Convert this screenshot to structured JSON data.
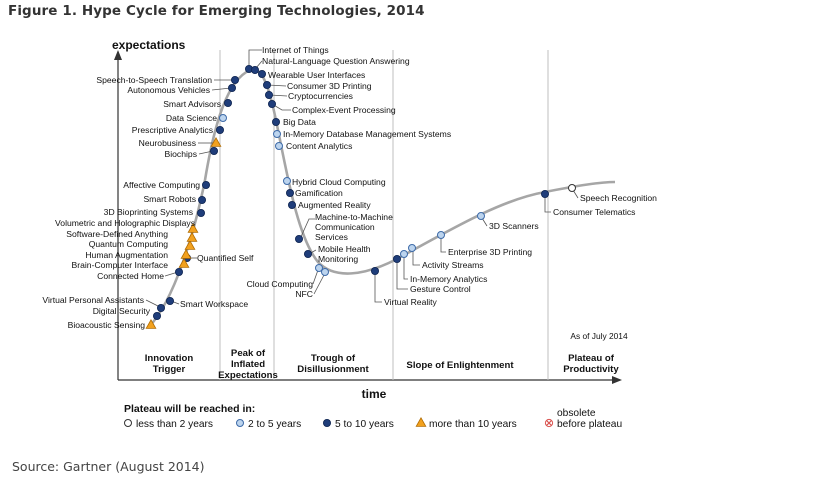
{
  "figure_title": "Figure 1. Hype Cycle for Emerging Technologies, 2014",
  "source": "Source: Gartner (August 2014)",
  "chart_data": {
    "type": "scatter",
    "title": "Hype Cycle for Emerging Technologies, 2014",
    "ylabel": "expectations",
    "xlabel": "time",
    "as_of": "As of July 2014",
    "phases": [
      "Innovation Trigger",
      "Peak of Inflated Expectations",
      "Trough of Disillusionment",
      "Slope of Enlightenment",
      "Plateau of Productivity"
    ],
    "legend_title": "Plateau will be reached in:",
    "legend": [
      {
        "key": "lt2",
        "label": "less than 2 years",
        "symbol": "open-circle"
      },
      {
        "key": "2to5",
        "label": "2 to 5 years",
        "symbol": "light-blue-circle"
      },
      {
        "key": "5to10",
        "label": "5 to 10 years",
        "symbol": "dark-blue-circle"
      },
      {
        "key": "gt10",
        "label": "more than 10 years",
        "symbol": "orange-triangle"
      },
      {
        "key": "obs",
        "label": "obsolete before plateau",
        "symbol": "crossed-circle"
      }
    ],
    "colors": {
      "curve": "#a6a6a6",
      "dark_blue": "#1f3d7a",
      "light_blue": "#bcd4ee",
      "orange": "#f2a11f",
      "obsolete": "#d9534f",
      "divider": "#bfbfbf"
    },
    "technologies": [
      {
        "name": "Bioacoustic Sensing",
        "phase": "Innovation Trigger",
        "plateau": "gt10"
      },
      {
        "name": "Digital Security",
        "phase": "Innovation Trigger",
        "plateau": "5to10"
      },
      {
        "name": "Virtual Personal Assistants",
        "phase": "Innovation Trigger",
        "plateau": "5to10"
      },
      {
        "name": "Smart Workspace",
        "phase": "Innovation Trigger",
        "plateau": "5to10"
      },
      {
        "name": "Connected Home",
        "phase": "Innovation Trigger",
        "plateau": "5to10"
      },
      {
        "name": "Quantified Self",
        "phase": "Innovation Trigger",
        "plateau": "5to10"
      },
      {
        "name": "Brain-Computer Interface",
        "phase": "Innovation Trigger",
        "plateau": "gt10"
      },
      {
        "name": "Human Augmentation",
        "phase": "Innovation Trigger",
        "plateau": "gt10"
      },
      {
        "name": "Quantum Computing",
        "phase": "Innovation Trigger",
        "plateau": "gt10"
      },
      {
        "name": "Software-Defined Anything",
        "phase": "Innovation Trigger",
        "plateau": "gt10"
      },
      {
        "name": "Volumetric and Holographic Displays",
        "phase": "Innovation Trigger",
        "plateau": "gt10"
      },
      {
        "name": "3D Bioprinting Systems",
        "phase": "Innovation Trigger",
        "plateau": "5to10"
      },
      {
        "name": "Smart Robots",
        "phase": "Innovation Trigger",
        "plateau": "5to10"
      },
      {
        "name": "Affective Computing",
        "phase": "Innovation Trigger",
        "plateau": "5to10"
      },
      {
        "name": "Biochips",
        "phase": "Innovation Trigger",
        "plateau": "5to10"
      },
      {
        "name": "Neurobusiness",
        "phase": "Innovation Trigger",
        "plateau": "gt10"
      },
      {
        "name": "Prescriptive Analytics",
        "phase": "Innovation Trigger",
        "plateau": "5to10"
      },
      {
        "name": "Data Science",
        "phase": "Innovation Trigger",
        "plateau": "2to5"
      },
      {
        "name": "Smart Advisors",
        "phase": "Innovation Trigger",
        "plateau": "5to10"
      },
      {
        "name": "Autonomous Vehicles",
        "phase": "Innovation Trigger",
        "plateau": "5to10"
      },
      {
        "name": "Speech-to-Speech Translation",
        "phase": "Innovation Trigger",
        "plateau": "5to10"
      },
      {
        "name": "Internet of Things",
        "phase": "Peak of Inflated Expectations",
        "plateau": "5to10"
      },
      {
        "name": "Natural-Language Question Answering",
        "phase": "Peak of Inflated Expectations",
        "plateau": "5to10"
      },
      {
        "name": "Wearable User Interfaces",
        "phase": "Peak of Inflated Expectations",
        "plateau": "5to10"
      },
      {
        "name": "Consumer 3D Printing",
        "phase": "Peak of Inflated Expectations",
        "plateau": "5to10"
      },
      {
        "name": "Cryptocurrencies",
        "phase": "Peak of Inflated Expectations",
        "plateau": "5to10"
      },
      {
        "name": "Complex-Event Processing",
        "phase": "Peak of Inflated Expectations",
        "plateau": "5to10"
      },
      {
        "name": "Big Data",
        "phase": "Peak of Inflated Expectations",
        "plateau": "5to10"
      },
      {
        "name": "In-Memory Database Management Systems",
        "phase": "Peak of Inflated Expectations",
        "plateau": "2to5"
      },
      {
        "name": "Content Analytics",
        "phase": "Peak of Inflated Expectations",
        "plateau": "2to5"
      },
      {
        "name": "Hybrid Cloud Computing",
        "phase": "Trough of Disillusionment",
        "plateau": "2to5"
      },
      {
        "name": "Gamification",
        "phase": "Trough of Disillusionment",
        "plateau": "5to10"
      },
      {
        "name": "Augmented Reality",
        "phase": "Trough of Disillusionment",
        "plateau": "5to10"
      },
      {
        "name": "Machine-to-Machine Communication Services",
        "phase": "Trough of Disillusionment",
        "plateau": "5to10"
      },
      {
        "name": "Mobile Health Monitoring",
        "phase": "Trough of Disillusionment",
        "plateau": "5to10"
      },
      {
        "name": "Cloud Computing",
        "phase": "Trough of Disillusionment",
        "plateau": "2to5"
      },
      {
        "name": "NFC",
        "phase": "Trough of Disillusionment",
        "plateau": "2to5"
      },
      {
        "name": "Virtual Reality",
        "phase": "Trough of Disillusionment",
        "plateau": "5to10"
      },
      {
        "name": "Gesture Control",
        "phase": "Slope of Enlightenment",
        "plateau": "5to10"
      },
      {
        "name": "In-Memory Analytics",
        "phase": "Slope of Enlightenment",
        "plateau": "2to5"
      },
      {
        "name": "Activity Streams",
        "phase": "Slope of Enlightenment",
        "plateau": "2to5"
      },
      {
        "name": "Enterprise 3D Printing",
        "phase": "Slope of Enlightenment",
        "plateau": "2to5"
      },
      {
        "name": "3D Scanners",
        "phase": "Slope of Enlightenment",
        "plateau": "2to5"
      },
      {
        "name": "Consumer Telematics",
        "phase": "Slope of Enlightenment",
        "plateau": "5to10"
      },
      {
        "name": "Speech Recognition",
        "phase": "Slope of Enlightenment",
        "plateau": "lt2"
      }
    ]
  }
}
